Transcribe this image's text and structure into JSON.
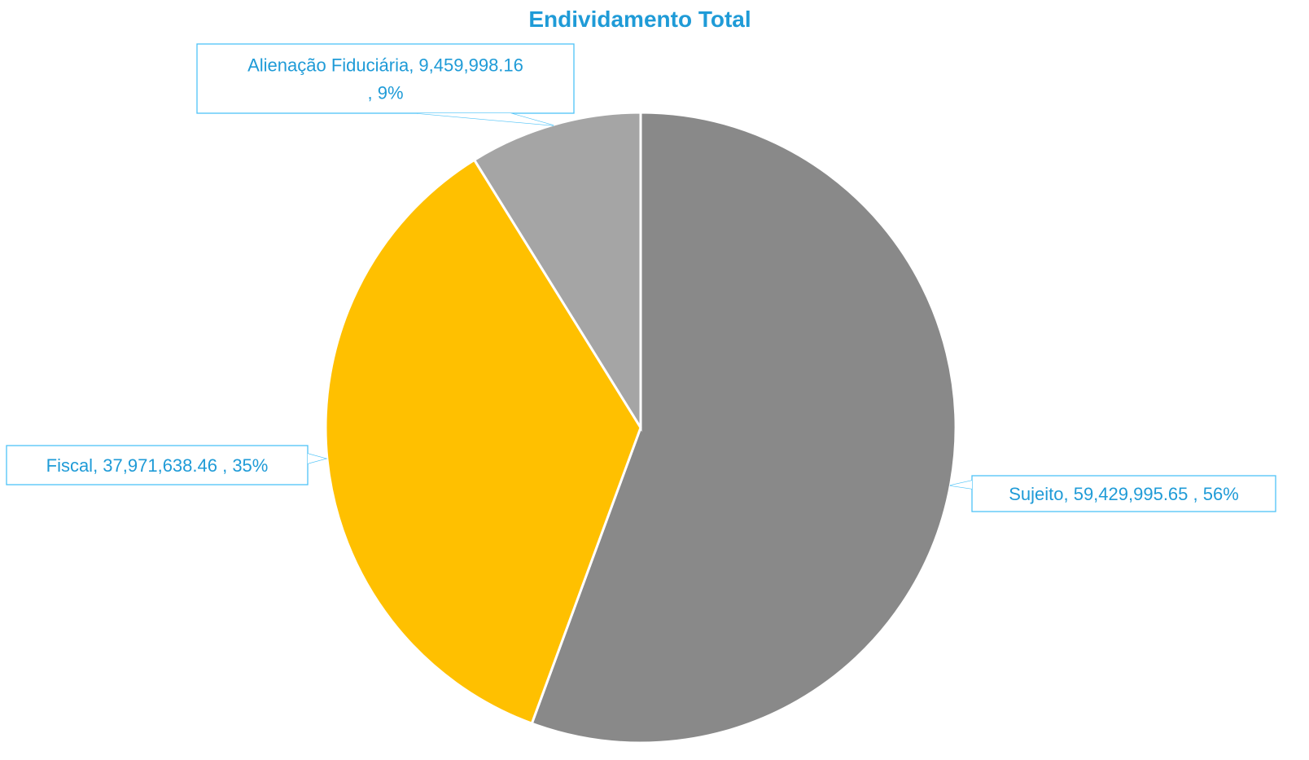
{
  "chart_data": {
    "type": "pie",
    "title": "Endividamento Total",
    "slices": [
      {
        "name": "Sujeito",
        "value": 59429995.65,
        "value_label": "59,429,995.65",
        "percent_label": "56%",
        "color": "#898989"
      },
      {
        "name": "Fiscal",
        "value": 37971638.46,
        "value_label": "37,971,638.46",
        "percent_label": "35%",
        "color": "#FFC000"
      },
      {
        "name": "Alienação Fiduciária",
        "value": 9459998.16,
        "value_label": "9,459,998.16",
        "percent_label": "9%",
        "color": "#A5A5A5"
      }
    ],
    "data_labels": [
      {
        "lines": [
          "Sujeito,  59,429,995.65 , 56%"
        ]
      },
      {
        "lines": [
          "Fiscal,  37,971,638.46 , 35%"
        ]
      },
      {
        "lines": [
          "Alienação Fiduciária,  9,459,998.16",
          ", 9%"
        ]
      }
    ],
    "label_color": "#1F9BD7",
    "callout_border_color": "#4FC3F7",
    "legend": "none"
  }
}
